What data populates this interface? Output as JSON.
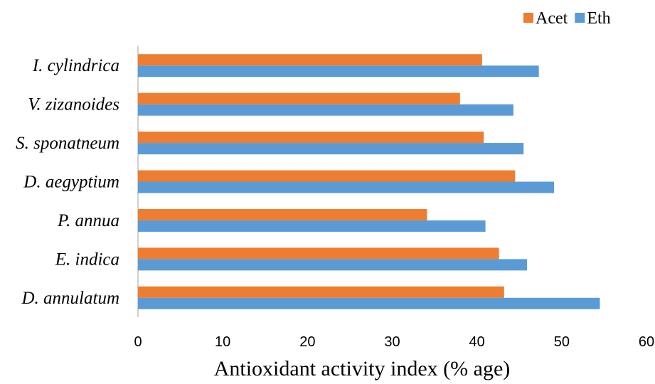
{
  "chart_data": {
    "type": "bar",
    "orientation": "horizontal",
    "categories": [
      "I. cylindrica",
      "V. zizanoides",
      "S. sponatneum",
      "D. aegyptium",
      "P. annua",
      "E. indica",
      "D. annulatum"
    ],
    "series": [
      {
        "name": "Acet",
        "color": "#ED7D31",
        "values": [
          40.6,
          38.0,
          40.8,
          44.5,
          34.1,
          42.6,
          43.2
        ]
      },
      {
        "name": "Eth",
        "color": "#5B9BD5",
        "values": [
          47.3,
          44.3,
          45.5,
          49.1,
          41.0,
          45.9,
          54.5
        ]
      }
    ],
    "xlabel": "Antioxidant activity index (% age)",
    "ylabel": "",
    "title": "",
    "xlim": [
      0,
      60
    ],
    "xticks": [
      0,
      10,
      20,
      30,
      40,
      50,
      60
    ],
    "xtick_labels": [
      "0",
      "10",
      "20",
      "30",
      "40",
      "50",
      "60"
    ],
    "grid": false,
    "legend_position": "top-right"
  }
}
